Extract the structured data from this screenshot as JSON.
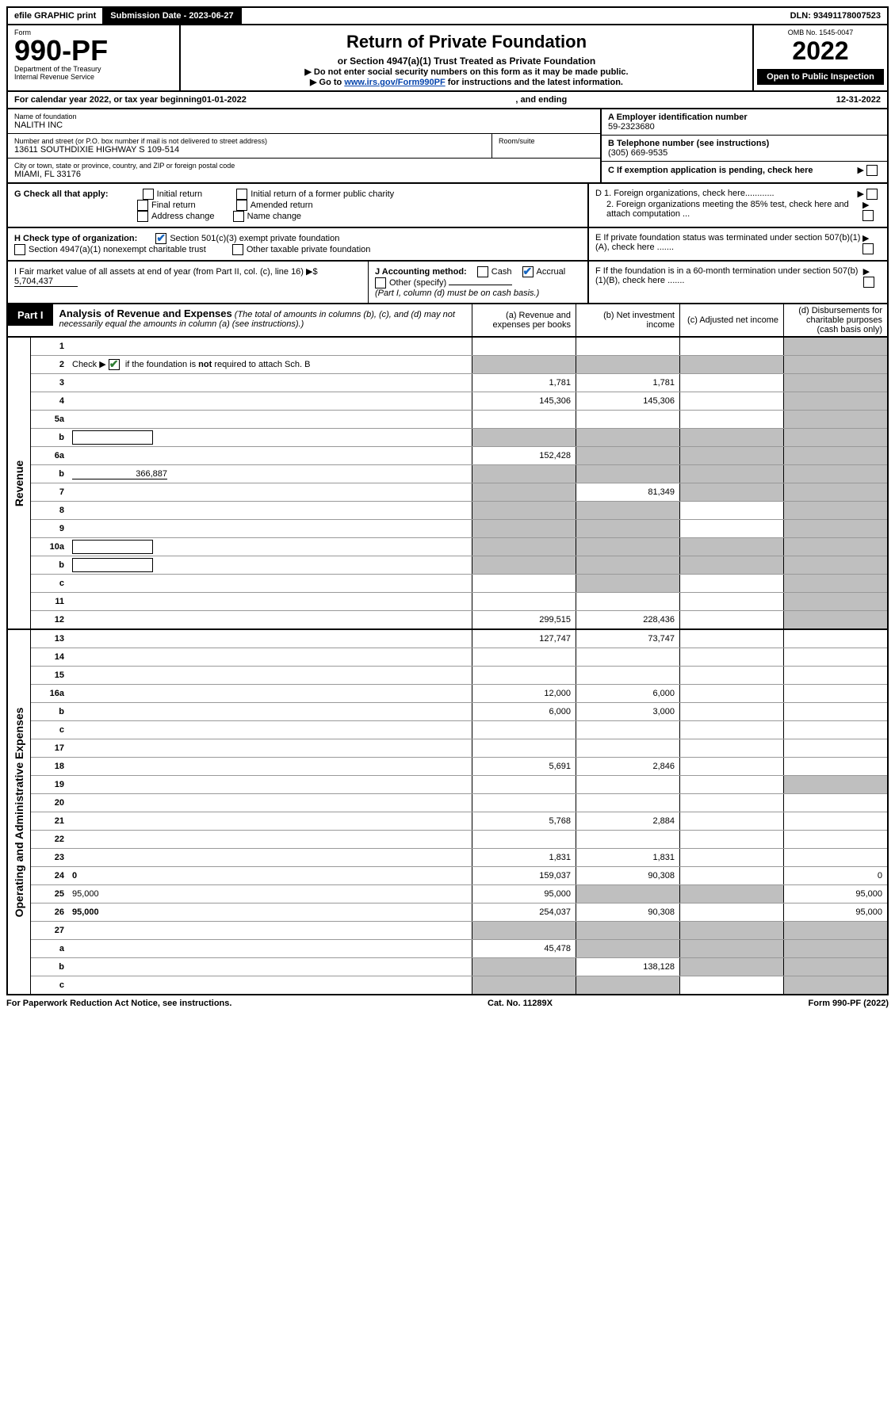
{
  "topbar": {
    "efile": "efile GRAPHIC print",
    "submission_label": "Submission Date - 2023-06-27",
    "dln": "DLN: 93491178007523"
  },
  "header": {
    "form_word": "Form",
    "form_number": "990-PF",
    "dept": "Department of the Treasury",
    "irs": "Internal Revenue Service",
    "title": "Return of Private Foundation",
    "subtitle": "or Section 4947(a)(1) Trust Treated as Private Foundation",
    "note1": "▶ Do not enter social security numbers on this form as it may be made public.",
    "note2_pre": "▶ Go to ",
    "note2_link": "www.irs.gov/Form990PF",
    "note2_post": " for instructions and the latest information.",
    "omb": "OMB No. 1545-0047",
    "year": "2022",
    "open_public": "Open to Public Inspection"
  },
  "taxyear": {
    "pre": "For calendar year 2022, or tax year beginning ",
    "begin": "01-01-2022",
    "mid": ", and ending ",
    "end": "12-31-2022"
  },
  "foundation": {
    "name_label": "Name of foundation",
    "name": "NALITH INC",
    "addr_label": "Number and street (or P.O. box number if mail is not delivered to street address)",
    "addr": "13611 SOUTHDIXIE HIGHWAY S 109-514",
    "room_label": "Room/suite",
    "city_label": "City or town, state or province, country, and ZIP or foreign postal code",
    "city": "MIAMI, FL  33176",
    "ein_label": "A Employer identification number",
    "ein": "59-2323680",
    "phone_label": "B Telephone number (see instructions)",
    "phone": "(305) 669-9535",
    "c_label": "C If exemption application is pending, check here"
  },
  "sectionG": {
    "label": "G Check all that apply:",
    "opts": [
      "Initial return",
      "Final return",
      "Address change",
      "Initial return of a former public charity",
      "Amended return",
      "Name change"
    ]
  },
  "sectionD": {
    "d1": "D 1. Foreign organizations, check here............",
    "d2": "2. Foreign organizations meeting the 85% test, check here and attach computation ...",
    "e": "E  If private foundation status was terminated under section 507(b)(1)(A), check here .......",
    "f": "F  If the foundation is in a 60-month termination under section 507(b)(1)(B), check here ......."
  },
  "sectionH": {
    "label": "H Check type of organization:",
    "opt1": "Section 501(c)(3) exempt private foundation",
    "opt2": "Section 4947(a)(1) nonexempt charitable trust",
    "opt3": "Other taxable private foundation"
  },
  "sectionI": {
    "label": "I Fair market value of all assets at end of year (from Part II, col. (c), line 16) ▶$ ",
    "value": "5,704,437"
  },
  "sectionJ": {
    "label": "J Accounting method:",
    "cash": "Cash",
    "accrual": "Accrual",
    "other": "Other (specify)",
    "note": "(Part I, column (d) must be on cash basis.)"
  },
  "part1": {
    "label": "Part I",
    "title": "Analysis of Revenue and Expenses",
    "title_note": "(The total of amounts in columns (b), (c), and (d) may not necessarily equal the amounts in column (a) (see instructions).)",
    "col_a": "(a)  Revenue and expenses per books",
    "col_b": "(b)  Net investment income",
    "col_c": "(c)  Adjusted net income",
    "col_d": "(d)  Disbursements for charitable purposes (cash basis only)"
  },
  "sections": {
    "revenue": "Revenue",
    "expenses": "Operating and Administrative Expenses"
  },
  "rows": [
    {
      "n": "1",
      "d": "",
      "a": "",
      "b": "",
      "c": "",
      "shade_d": true
    },
    {
      "n": "2",
      "d": "",
      "a": "",
      "b": "",
      "c": "",
      "shade_all": true,
      "check": true
    },
    {
      "n": "3",
      "d": "",
      "a": "1,781",
      "b": "1,781",
      "c": "",
      "shade_d": true
    },
    {
      "n": "4",
      "d": "",
      "a": "145,306",
      "b": "145,306",
      "c": "",
      "shade_d": true
    },
    {
      "n": "5a",
      "d": "",
      "a": "",
      "b": "",
      "c": "",
      "shade_d": true
    },
    {
      "n": "b",
      "d": "",
      "a": "",
      "b": "",
      "c": "",
      "shade_all": true,
      "inline": true
    },
    {
      "n": "6a",
      "d": "",
      "a": "152,428",
      "b": "",
      "c": "",
      "shade_bcd": true
    },
    {
      "n": "b",
      "d": "",
      "a": "",
      "b": "",
      "c": "",
      "shade_all": true,
      "inline_val": "366,887"
    },
    {
      "n": "7",
      "d": "",
      "a": "",
      "b": "81,349",
      "c": "",
      "shade_a": true,
      "shade_cd": true
    },
    {
      "n": "8",
      "d": "",
      "a": "",
      "b": "",
      "c": "",
      "shade_ab": true,
      "shade_d": true
    },
    {
      "n": "9",
      "d": "",
      "a": "",
      "b": "",
      "c": "",
      "shade_ab": true,
      "shade_d": true
    },
    {
      "n": "10a",
      "d": "",
      "a": "",
      "b": "",
      "c": "",
      "shade_all": true,
      "inline": true
    },
    {
      "n": "b",
      "d": "",
      "a": "",
      "b": "",
      "c": "",
      "shade_all": true,
      "inline": true
    },
    {
      "n": "c",
      "d": "",
      "a": "",
      "b": "",
      "c": "",
      "shade_b": true,
      "shade_d": true
    },
    {
      "n": "11",
      "d": "",
      "a": "",
      "b": "",
      "c": "",
      "shade_d": true
    },
    {
      "n": "12",
      "d": "",
      "a": "299,515",
      "b": "228,436",
      "c": "",
      "shade_d": true,
      "bold": true
    }
  ],
  "exp_rows": [
    {
      "n": "13",
      "d": "",
      "a": "127,747",
      "b": "73,747",
      "c": ""
    },
    {
      "n": "14",
      "d": "",
      "a": "",
      "b": "",
      "c": ""
    },
    {
      "n": "15",
      "d": "",
      "a": "",
      "b": "",
      "c": ""
    },
    {
      "n": "16a",
      "d": "",
      "a": "12,000",
      "b": "6,000",
      "c": ""
    },
    {
      "n": "b",
      "d": "",
      "a": "6,000",
      "b": "3,000",
      "c": ""
    },
    {
      "n": "c",
      "d": "",
      "a": "",
      "b": "",
      "c": ""
    },
    {
      "n": "17",
      "d": "",
      "a": "",
      "b": "",
      "c": ""
    },
    {
      "n": "18",
      "d": "",
      "a": "5,691",
      "b": "2,846",
      "c": ""
    },
    {
      "n": "19",
      "d": "",
      "a": "",
      "b": "",
      "c": "",
      "shade_d": true
    },
    {
      "n": "20",
      "d": "",
      "a": "",
      "b": "",
      "c": ""
    },
    {
      "n": "21",
      "d": "",
      "a": "5,768",
      "b": "2,884",
      "c": ""
    },
    {
      "n": "22",
      "d": "",
      "a": "",
      "b": "",
      "c": ""
    },
    {
      "n": "23",
      "d": "",
      "a": "1,831",
      "b": "1,831",
      "c": ""
    },
    {
      "n": "24",
      "d": "0",
      "a": "159,037",
      "b": "90,308",
      "c": "",
      "bold": true
    },
    {
      "n": "25",
      "d": "95,000",
      "a": "95,000",
      "b": "",
      "c": "",
      "shade_bc": true
    },
    {
      "n": "26",
      "d": "95,000",
      "a": "254,037",
      "b": "90,308",
      "c": "",
      "bold": true
    },
    {
      "n": "27",
      "d": "",
      "a": "",
      "b": "",
      "c": "",
      "shade_all": true
    },
    {
      "n": "a",
      "d": "",
      "a": "45,478",
      "b": "",
      "c": "",
      "shade_bcd": true,
      "bold": true
    },
    {
      "n": "b",
      "d": "",
      "a": "",
      "b": "138,128",
      "c": "",
      "shade_a": true,
      "shade_cd": true,
      "bold": true
    },
    {
      "n": "c",
      "d": "",
      "a": "",
      "b": "",
      "c": "",
      "shade_ab": true,
      "shade_d": true,
      "bold": true
    }
  ],
  "footer": {
    "left": "For Paperwork Reduction Act Notice, see instructions.",
    "mid": "Cat. No. 11289X",
    "right": "Form 990-PF (2022)"
  },
  "colors": {
    "black": "#000000",
    "white": "#ffffff",
    "shaded": "#bfbfbf",
    "link": "#0645ad",
    "check_green": "#2e7d32"
  }
}
